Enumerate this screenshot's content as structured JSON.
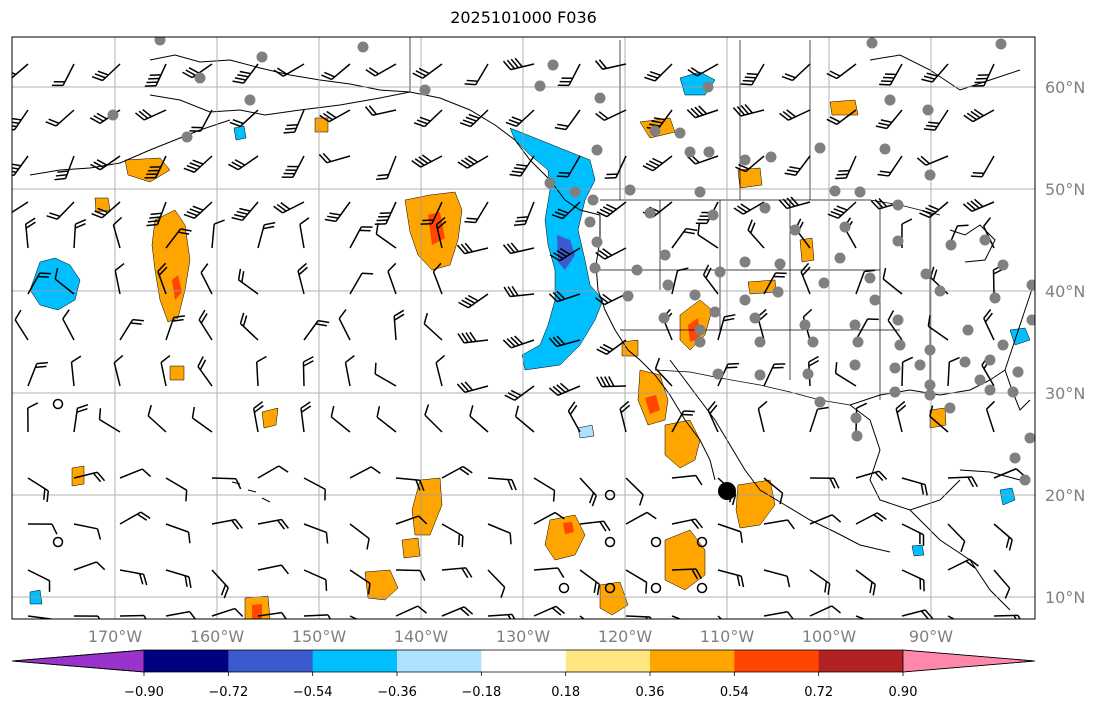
{
  "title": "2025101000 F036",
  "lat_labels": [
    "60°N",
    "50°N",
    "40°N",
    "30°N",
    "20°N",
    "10°N"
  ],
  "lon_labels": [
    "170°W",
    "160°W",
    "150°W",
    "140°W",
    "130°W",
    "120°W",
    "110°W",
    "100°W",
    "90°W"
  ],
  "colorbar": {
    "ticks": [
      "−0.90",
      "−0.72",
      "−0.54",
      "−0.36",
      "−0.18",
      "0.18",
      "0.36",
      "0.54",
      "0.72",
      "0.90"
    ],
    "colors": [
      "#9933cc",
      "#000080",
      "#3a5acd",
      "#00bfff",
      "#aee0ff",
      "#ffffff",
      "#ffe680",
      "#ffa500",
      "#ff4500",
      "#b22222",
      "#ff88aa"
    ]
  },
  "colors": {
    "neg_light": "#00bfff",
    "neg_dark": "#3a5acd",
    "pos_light": "#ffa500",
    "pos_mid": "#ff4500",
    "grid": "#a0a0a0",
    "coast": "#000000",
    "station": "#808080"
  }
}
